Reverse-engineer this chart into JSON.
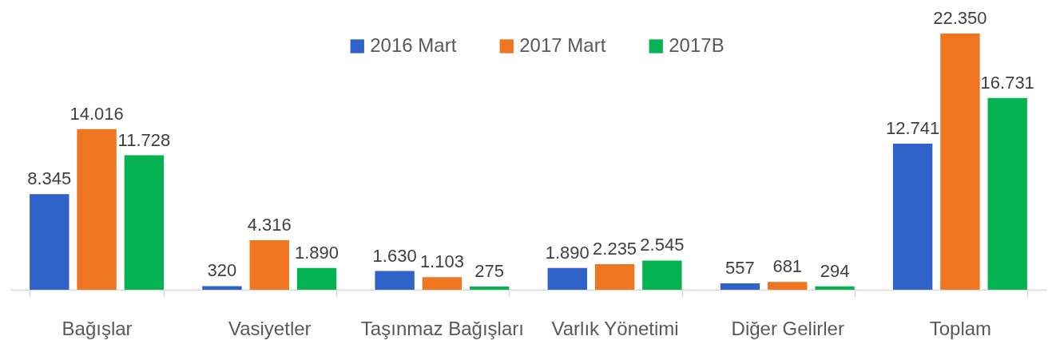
{
  "chart_data": {
    "type": "bar",
    "categories": [
      "Bağışlar",
      "Vasiyetler",
      "Taşınmaz Bağışları",
      "Varlık Yönetimi",
      "Diğer Gelirler",
      "Toplam"
    ],
    "series": [
      {
        "name": "2016 Mart",
        "color": "#2f63c9",
        "values": [
          8345,
          320,
          1630,
          1890,
          557,
          12741
        ],
        "value_labels": [
          "8.345",
          "320",
          "1.630",
          "1.890",
          "557",
          "12.741"
        ]
      },
      {
        "name": "2017 Mart",
        "color": "#f07520",
        "values": [
          14016,
          4316,
          1103,
          2235,
          681,
          22350
        ],
        "value_labels": [
          "14.016",
          "4.316",
          "1.103",
          "2.235",
          "681",
          "22.350"
        ]
      },
      {
        "name": "2017B",
        "color": "#05b352",
        "values": [
          11728,
          1890,
          275,
          2545,
          294,
          16731
        ],
        "value_labels": [
          "11.728",
          "1.890",
          "275",
          "2.545",
          "294",
          "16.731"
        ]
      }
    ],
    "legend": "top"
  }
}
